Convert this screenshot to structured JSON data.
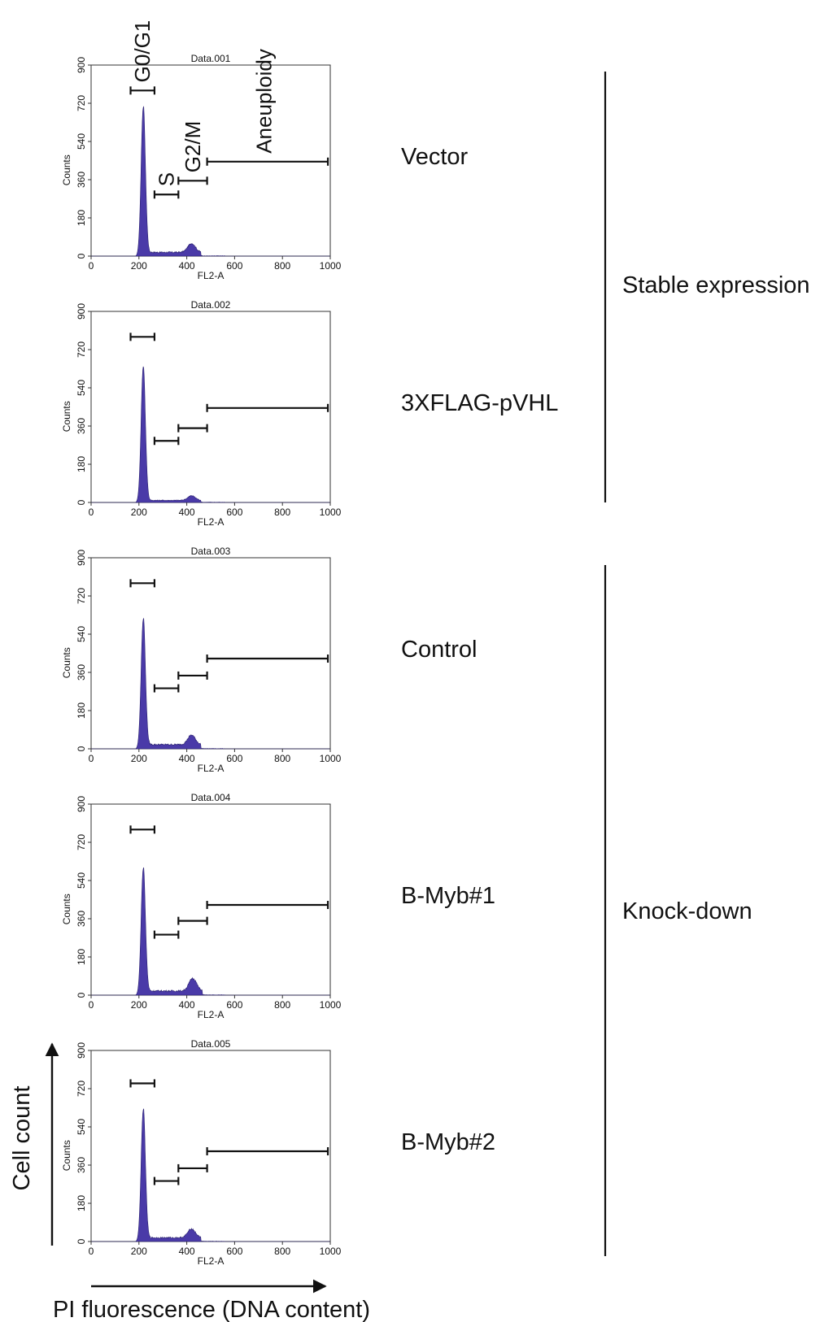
{
  "colors": {
    "histogram_fill": "#4a3aa8",
    "histogram_edge": "#2a2070",
    "ink": "#111111",
    "frame": "#333333"
  },
  "chart_data": [
    {
      "type": "area",
      "title": "Data.001",
      "xlabel": "FL2-A",
      "ylabel": "Counts",
      "xlim": [
        0,
        1000
      ],
      "ylim": [
        0,
        900
      ],
      "xticks": [
        "0",
        "200",
        "400",
        "600",
        "800",
        "1000"
      ],
      "yticks": [
        "0",
        "180",
        "360",
        "540",
        "720",
        "900"
      ],
      "row_label": "Vector",
      "histogram": {
        "g1_peak_x": 218,
        "g1_peak_height": 700,
        "s_level": 18,
        "g2_peak_x": 420,
        "g2_peak_height": 42
      },
      "gates": [
        {
          "label": "G0/G1",
          "x0": 165,
          "x1": 265,
          "y": 780
        },
        {
          "label": "S",
          "x0": 265,
          "x1": 365,
          "y": 290
        },
        {
          "label": "G2/M",
          "x0": 365,
          "x1": 485,
          "y": 355
        },
        {
          "label": "Aneuploidy",
          "x0": 485,
          "x1": 990,
          "y": 445
        }
      ]
    },
    {
      "type": "area",
      "title": "Data.002",
      "xlabel": "FL2-A",
      "ylabel": "Counts",
      "xlim": [
        0,
        1000
      ],
      "ylim": [
        0,
        900
      ],
      "xticks": [
        "0",
        "200",
        "400",
        "600",
        "800",
        "1000"
      ],
      "yticks": [
        "0",
        "180",
        "360",
        "540",
        "720",
        "900"
      ],
      "row_label": "3XFLAG-pVHL",
      "histogram": {
        "g1_peak_x": 218,
        "g1_peak_height": 640,
        "s_level": 10,
        "g2_peak_x": 420,
        "g2_peak_height": 22
      },
      "gates": [
        {
          "label": "",
          "x0": 165,
          "x1": 265,
          "y": 780
        },
        {
          "label": "",
          "x0": 265,
          "x1": 365,
          "y": 290
        },
        {
          "label": "",
          "x0": 365,
          "x1": 485,
          "y": 350
        },
        {
          "label": "",
          "x0": 485,
          "x1": 990,
          "y": 445
        }
      ]
    },
    {
      "type": "area",
      "title": "Data.003",
      "xlabel": "FL2-A",
      "ylabel": "Counts",
      "xlim": [
        0,
        1000
      ],
      "ylim": [
        0,
        900
      ],
      "xticks": [
        "0",
        "200",
        "400",
        "600",
        "800",
        "1000"
      ],
      "yticks": [
        "0",
        "180",
        "360",
        "540",
        "720",
        "900"
      ],
      "row_label": "Control",
      "histogram": {
        "g1_peak_x": 218,
        "g1_peak_height": 610,
        "s_level": 20,
        "g2_peak_x": 420,
        "g2_peak_height": 45
      },
      "gates": [
        {
          "label": "",
          "x0": 165,
          "x1": 265,
          "y": 780
        },
        {
          "label": "",
          "x0": 265,
          "x1": 365,
          "y": 285
        },
        {
          "label": "",
          "x0": 365,
          "x1": 485,
          "y": 345
        },
        {
          "label": "",
          "x0": 485,
          "x1": 990,
          "y": 425
        }
      ]
    },
    {
      "type": "area",
      "title": "Data.004",
      "xlabel": "FL2-A",
      "ylabel": "Counts",
      "xlim": [
        0,
        1000
      ],
      "ylim": [
        0,
        900
      ],
      "xticks": [
        "0",
        "200",
        "400",
        "600",
        "800",
        "1000"
      ],
      "yticks": [
        "0",
        "180",
        "360",
        "540",
        "720",
        "900"
      ],
      "row_label": "B-Myb#1",
      "histogram": {
        "g1_peak_x": 218,
        "g1_peak_height": 595,
        "s_level": 20,
        "g2_peak_x": 425,
        "g2_peak_height": 60
      },
      "gates": [
        {
          "label": "",
          "x0": 165,
          "x1": 265,
          "y": 780
        },
        {
          "label": "",
          "x0": 265,
          "x1": 365,
          "y": 285
        },
        {
          "label": "",
          "x0": 365,
          "x1": 485,
          "y": 350
        },
        {
          "label": "",
          "x0": 485,
          "x1": 990,
          "y": 425
        }
      ]
    },
    {
      "type": "area",
      "title": "Data.005",
      "xlabel": "FL2-A",
      "ylabel": "Counts",
      "xlim": [
        0,
        1000
      ],
      "ylim": [
        0,
        900
      ],
      "xticks": [
        "0",
        "200",
        "400",
        "600",
        "800",
        "1000"
      ],
      "yticks": [
        "0",
        "180",
        "360",
        "540",
        "720",
        "900"
      ],
      "row_label": "B-Myb#2",
      "histogram": {
        "g1_peak_x": 218,
        "g1_peak_height": 620,
        "s_level": 18,
        "g2_peak_x": 420,
        "g2_peak_height": 42
      },
      "gates": [
        {
          "label": "",
          "x0": 165,
          "x1": 265,
          "y": 745
        },
        {
          "label": "",
          "x0": 265,
          "x1": 365,
          "y": 285
        },
        {
          "label": "",
          "x0": 365,
          "x1": 485,
          "y": 345
        },
        {
          "label": "",
          "x0": 485,
          "x1": 990,
          "y": 425
        }
      ]
    }
  ],
  "groups": [
    {
      "label": "Stable expression"
    },
    {
      "label": "Knock-down"
    }
  ],
  "axes_arrows": {
    "y_label": "Cell count",
    "x_label": "PI fluorescence (DNA content)"
  }
}
